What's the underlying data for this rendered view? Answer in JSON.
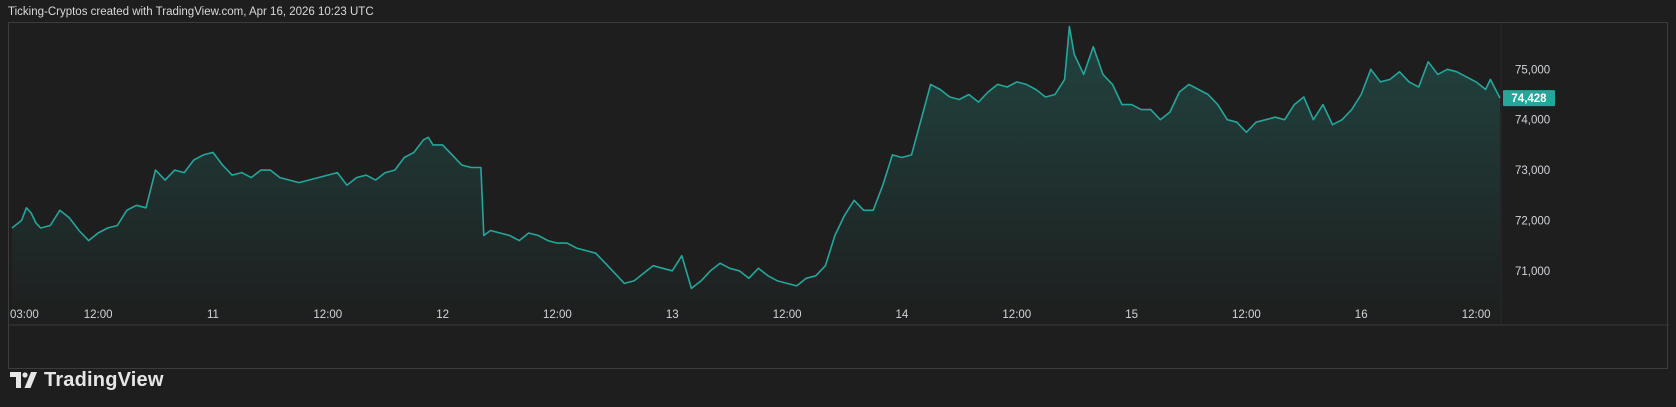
{
  "header": {
    "caption": "Ticking-Cryptos created with TradingView.com, Apr 16, 2026 10:23 UTC"
  },
  "brand": {
    "name": "TradingView",
    "logo_icon": "tradingview-logo-icon"
  },
  "colors": {
    "background": "#1e1e1e",
    "line": "#26a69a",
    "price_tag": "#26a69a"
  },
  "chart_data": {
    "type": "area",
    "title": "",
    "xlabel": "",
    "ylabel": "",
    "ylim": [
      70400,
      75900
    ],
    "y_ticks": [
      {
        "value": 75000,
        "label": "75,000"
      },
      {
        "value": 74000,
        "label": "74,000"
      },
      {
        "value": 73000,
        "label": "73,000"
      },
      {
        "value": 72000,
        "label": "72,000"
      },
      {
        "value": 71000,
        "label": "71,000"
      }
    ],
    "x_ticks": [
      {
        "label": "03:00",
        "t": 0
      },
      {
        "label": "12:00",
        "t": 9
      },
      {
        "label": "11",
        "t": 21
      },
      {
        "label": "12:00",
        "t": 33
      },
      {
        "label": "12",
        "t": 45
      },
      {
        "label": "12:00",
        "t": 57
      },
      {
        "label": "13",
        "t": 69
      },
      {
        "label": "12:00",
        "t": 81
      },
      {
        "label": "14",
        "t": 93
      },
      {
        "label": "12:00",
        "t": 105
      },
      {
        "label": "15",
        "t": 117
      },
      {
        "label": "12:00",
        "t": 129
      },
      {
        "label": "16",
        "t": 141
      },
      {
        "label": "12:00",
        "t": 153
      }
    ],
    "x_unit": "hours since Apr 10 03:00 UTC",
    "last_price": {
      "value": 74428,
      "label": "74,428"
    },
    "series": [
      {
        "points": [
          [
            0,
            71850
          ],
          [
            1,
            72000
          ],
          [
            1.5,
            72250
          ],
          [
            2,
            72150
          ],
          [
            2.5,
            71950
          ],
          [
            3,
            71850
          ],
          [
            4,
            71900
          ],
          [
            5,
            72200
          ],
          [
            6,
            72050
          ],
          [
            7,
            71800
          ],
          [
            8,
            71600
          ],
          [
            9,
            71750
          ],
          [
            10,
            71850
          ],
          [
            11,
            71900
          ],
          [
            12,
            72200
          ],
          [
            13,
            72300
          ],
          [
            14,
            72250
          ],
          [
            15,
            73000
          ],
          [
            16,
            72800
          ],
          [
            17,
            73000
          ],
          [
            18,
            72950
          ],
          [
            19,
            73200
          ],
          [
            20,
            73300
          ],
          [
            21,
            73350
          ],
          [
            22,
            73100
          ],
          [
            23,
            72900
          ],
          [
            24,
            72950
          ],
          [
            25,
            72850
          ],
          [
            26,
            73000
          ],
          [
            27,
            73000
          ],
          [
            28,
            72850
          ],
          [
            29,
            72800
          ],
          [
            30,
            72750
          ],
          [
            31,
            72800
          ],
          [
            32,
            72850
          ],
          [
            33,
            72900
          ],
          [
            34,
            72950
          ],
          [
            35,
            72700
          ],
          [
            36,
            72850
          ],
          [
            37,
            72900
          ],
          [
            38,
            72800
          ],
          [
            39,
            72950
          ],
          [
            40,
            73000
          ],
          [
            41,
            73250
          ],
          [
            42,
            73350
          ],
          [
            43,
            73600
          ],
          [
            43.5,
            73650
          ],
          [
            44,
            73500
          ],
          [
            45,
            73500
          ],
          [
            46,
            73300
          ],
          [
            47,
            73100
          ],
          [
            48,
            73050
          ],
          [
            49,
            73050
          ],
          [
            49.3,
            71700
          ],
          [
            50,
            71800
          ],
          [
            51,
            71750
          ],
          [
            52,
            71700
          ],
          [
            53,
            71600
          ],
          [
            54,
            71750
          ],
          [
            55,
            71700
          ],
          [
            56,
            71600
          ],
          [
            57,
            71550
          ],
          [
            58,
            71550
          ],
          [
            59,
            71450
          ],
          [
            60,
            71400
          ],
          [
            61,
            71350
          ],
          [
            62,
            71150
          ],
          [
            63,
            70950
          ],
          [
            64,
            70750
          ],
          [
            65,
            70800
          ],
          [
            66,
            70950
          ],
          [
            67,
            71100
          ],
          [
            68,
            71050
          ],
          [
            69,
            71000
          ],
          [
            70,
            71300
          ],
          [
            71,
            70650
          ],
          [
            72,
            70800
          ],
          [
            73,
            71000
          ],
          [
            74,
            71150
          ],
          [
            75,
            71050
          ],
          [
            76,
            71000
          ],
          [
            77,
            70850
          ],
          [
            78,
            71050
          ],
          [
            79,
            70900
          ],
          [
            80,
            70800
          ],
          [
            81,
            70750
          ],
          [
            82,
            70700
          ],
          [
            83,
            70850
          ],
          [
            84,
            70900
          ],
          [
            85,
            71100
          ],
          [
            86,
            71700
          ],
          [
            87,
            72100
          ],
          [
            88,
            72400
          ],
          [
            89,
            72200
          ],
          [
            90,
            72200
          ],
          [
            91,
            72700
          ],
          [
            92,
            73300
          ],
          [
            93,
            73250
          ],
          [
            94,
            73300
          ],
          [
            95,
            74000
          ],
          [
            96,
            74700
          ],
          [
            97,
            74600
          ],
          [
            98,
            74450
          ],
          [
            99,
            74400
          ],
          [
            100,
            74500
          ],
          [
            101,
            74350
          ],
          [
            102,
            74550
          ],
          [
            103,
            74700
          ],
          [
            104,
            74650
          ],
          [
            105,
            74750
          ],
          [
            106,
            74700
          ],
          [
            107,
            74600
          ],
          [
            108,
            74450
          ],
          [
            109,
            74500
          ],
          [
            110,
            74800
          ],
          [
            110.5,
            75850
          ],
          [
            111,
            75300
          ],
          [
            112,
            74900
          ],
          [
            113,
            75450
          ],
          [
            114,
            74900
          ],
          [
            115,
            74700
          ],
          [
            116,
            74300
          ],
          [
            117,
            74300
          ],
          [
            118,
            74200
          ],
          [
            119,
            74200
          ],
          [
            120,
            74000
          ],
          [
            121,
            74150
          ],
          [
            122,
            74550
          ],
          [
            123,
            74700
          ],
          [
            124,
            74600
          ],
          [
            125,
            74500
          ],
          [
            126,
            74300
          ],
          [
            127,
            74000
          ],
          [
            128,
            73950
          ],
          [
            129,
            73750
          ],
          [
            130,
            73950
          ],
          [
            131,
            74000
          ],
          [
            132,
            74050
          ],
          [
            133,
            74000
          ],
          [
            134,
            74300
          ],
          [
            135,
            74450
          ],
          [
            136,
            74000
          ],
          [
            137,
            74300
          ],
          [
            138,
            73900
          ],
          [
            139,
            74000
          ],
          [
            140,
            74200
          ],
          [
            141,
            74500
          ],
          [
            142,
            75000
          ],
          [
            143,
            74750
          ],
          [
            144,
            74800
          ],
          [
            145,
            74950
          ],
          [
            146,
            74750
          ],
          [
            147,
            74650
          ],
          [
            148,
            75150
          ],
          [
            149,
            74900
          ],
          [
            150,
            75000
          ],
          [
            151,
            74950
          ],
          [
            152,
            74850
          ],
          [
            153,
            74750
          ],
          [
            154,
            74600
          ],
          [
            154.5,
            74800
          ],
          [
            155.5,
            74428
          ]
        ]
      }
    ]
  }
}
